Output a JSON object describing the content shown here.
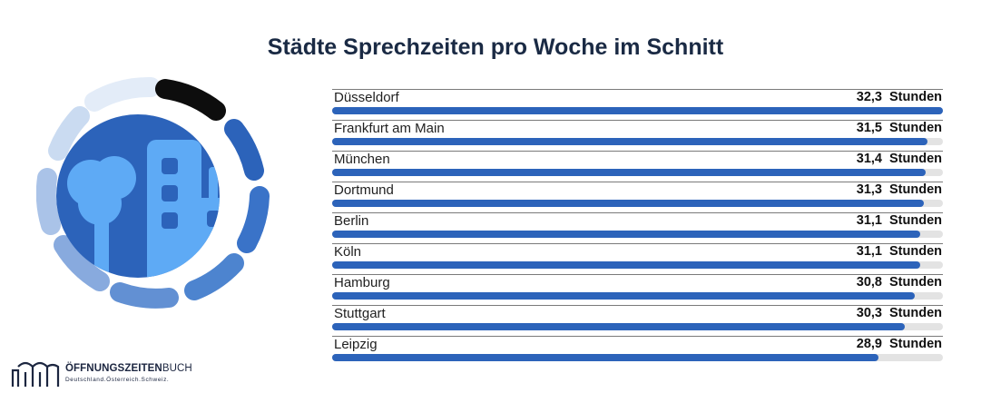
{
  "chart_data": {
    "type": "bar",
    "orientation": "horizontal",
    "title": "Städte Sprechzeiten pro Woche im Schnitt",
    "unit": "Stunden",
    "categories": [
      "Düsseldorf",
      "Frankfurt am Main",
      "München",
      "Dortmund",
      "Berlin",
      "Köln",
      "Hamburg",
      "Stuttgart",
      "Leipzig"
    ],
    "values": [
      32.3,
      31.5,
      31.4,
      31.3,
      31.1,
      31.1,
      30.8,
      30.3,
      28.9
    ],
    "value_labels": [
      "32,3",
      "31,5",
      "31,4",
      "31,3",
      "31,1",
      "31,1",
      "30,8",
      "30,3",
      "28,9"
    ],
    "xlim": [
      0,
      32.3
    ],
    "colors": {
      "bar": "#2c63ba",
      "track": "#e3e3e3",
      "title": "#1a2a44"
    }
  },
  "illustration": {
    "icon": "city-buildings-icon"
  },
  "logo": {
    "name_bold": "ÖFFNUNGSZEITEN",
    "name_thin": "BUCH",
    "tagline": "Deutschland.Österreich.Schweiz."
  }
}
